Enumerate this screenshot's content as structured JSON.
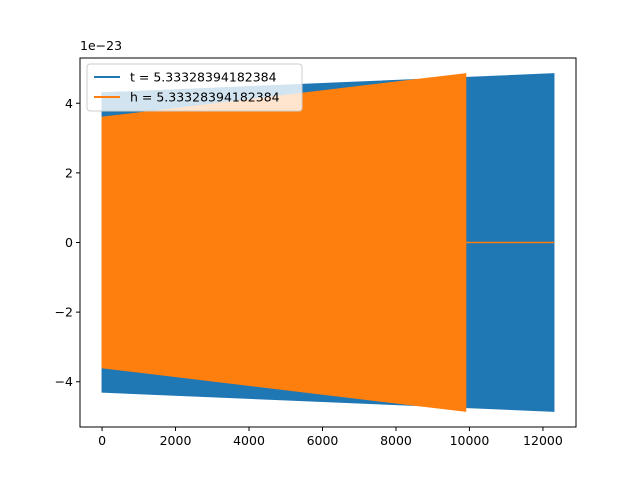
{
  "chart_data": {
    "type": "line",
    "title": "",
    "xlabel": "",
    "ylabel": "",
    "y_offset_label": "1e−23",
    "xlim": [
      -600,
      12900
    ],
    "ylim": [
      -5.3,
      5.3
    ],
    "x_ticks": [
      0,
      2000,
      4000,
      6000,
      8000,
      10000,
      12000
    ],
    "x_tick_labels": [
      "0",
      "2000",
      "4000",
      "6000",
      "8000",
      "10000",
      "12000"
    ],
    "y_ticks": [
      -4,
      -2,
      0,
      2,
      4
    ],
    "y_tick_labels": [
      "−4",
      "−2",
      "0",
      "2",
      "4"
    ],
    "grid": false,
    "legend": "top-left",
    "series": [
      {
        "name": "t = 5.33328394182384",
        "color": "#1f77b4",
        "kind": "oscillation-envelope",
        "x_start": 0,
        "x_end": 12300,
        "amplitude_start": 4.3,
        "amplitude_end": 4.85
      },
      {
        "name": "h = 5.33328394182384",
        "color": "#ff7f0e",
        "kind": "oscillation-envelope",
        "x_start": 0,
        "x_end": 9900,
        "amplitude_start": 3.6,
        "amplitude_end": 4.85,
        "tail_x_end": 12300,
        "tail_value": 0
      }
    ]
  }
}
